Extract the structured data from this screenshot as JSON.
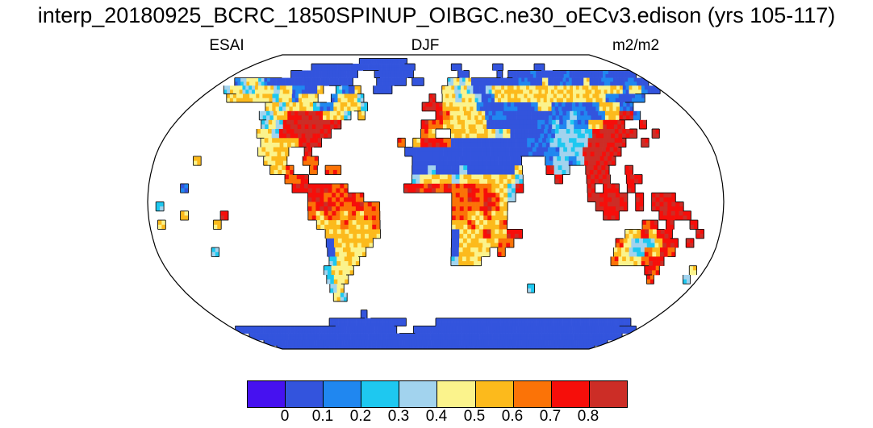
{
  "header": {
    "title": "interp_20180925_BCRC_1850SPINUP_OIBGC.ne30_oECv3.edison (yrs 105-117)"
  },
  "subtitles": {
    "left": "ESAI",
    "center": "DJF",
    "right": "m2/m2"
  },
  "colorbar": {
    "labels": [
      "0",
      "0.1",
      "0.2",
      "0.3",
      "0.4",
      "0.5",
      "0.6",
      "0.7",
      "0.8"
    ]
  },
  "chart_data": {
    "type": "heatmap",
    "title": "interp_20180925_BCRC_1850SPINUP_OIBGC.ne30_oECv3.edison (yrs 105-117)",
    "field": "ESAI",
    "season": "DJF",
    "units": "m2/m2",
    "projection": "robinson",
    "colorbar_levels": [
      0,
      0.1,
      0.2,
      0.3,
      0.4,
      0.5,
      0.6,
      0.7,
      0.8
    ],
    "palette": [
      "#4611f0",
      "#3354dd",
      "#2087f0",
      "#1ec8f0",
      "#a2d3ee",
      "#fbf38c",
      "#fcba1c",
      "#fb7307",
      "#f60e0a",
      "#cc2d26"
    ],
    "ocean_color": "#ffffff",
    "visual_summary": "Global land map: solid blue over Greenland, Sahara, Arabia, central Asia and Antarctica; orange band across mid-Siberia; dark red over eastern US, Europe-UK, east China, southeast Asia, Indonesia; orange over South America and southern Africa; pale blue/yellow over interior Australia and western North America.",
    "grid": {
      "lon_start": -180,
      "lon_step_deg": 5,
      "lat_start": 90,
      "lat_step_deg": -5,
      "cols": 72,
      "n_rows": 36,
      "encoding": "'.' = ocean (white); digit d = palette[d]",
      "rows": [
        "",
        "....................1111111111",
        "............11111111111111111111.......11......11......11",
        "..........111111111111...1111111........11.....1.11112111112111111211111",
        "..24554211111111111111....11111.11....4545111111112211511221151122112211",
        "..4554455546522116..3216..111........55454114566665566556655665566255211",
        "....55665563552655..25663..........9.5545541255665566556655665221122",
        "...........563556532256653........8986655521112211255221221266522",
        "...........4456889986553.6..........87556552221111112224221266882",
        "............45489999988...........87765656511111112242422668 88..8",
        "............5548899988............76..666565451111224443389999 9..9",
        ".............55666889............68887111111111122243434999 89..9",
        ".............5566..8.............111111111111111212244499999",
        "..............566..77............11111111111111...24424 9999",
        "...............667..7.77.........11411141111115...844..999..8",
        ".................778.............45656456565664....8...999..88",
        "..................8888877.......887878778776648........9.88.8",
        "....................8877787...........77878764.........99899.8.998",
        "....................788777877.........7777876...........9898.8.9988",
        "....................767767677.........7766766............88.....888",
        ".....................66676667.........6676667.................78.8",
        "......................6666666.........166686688.............668688",
        "......................166666..........16665677.............75443688",
        "......................15655...........16655.7..............65437687",
        "......................3565............4665.................7555788",
        ".....................3555.......................................87....5",
        ".....................355.........................................7....4",
        ".....................45",
        ".....................54",
        "",
        "........................1",
        "..................1111111111111.....111111111111111111111111111111111",
        "11111111111111111111111111111...1111111111111111111111111111111111111111",
        "111111111111111111111111111111111111111111111111111111111111111111111111",
        "111111111111111111111111111111111111111111111111111111111111111111111111",
        "111111111111111111111111111111111111111111111111111111111111111111111111"
      ]
    },
    "specks": [
      [
        11,
        31,
        7
      ],
      [
        12,
        32,
        1
      ],
      [
        13,
        5,
        6
      ],
      [
        16,
        4,
        2
      ],
      [
        18,
        1,
        3
      ],
      [
        20,
        1,
        5
      ],
      [
        19,
        4,
        6
      ],
      [
        19,
        9,
        8
      ],
      [
        20,
        8,
        6
      ],
      [
        19,
        67,
        8
      ],
      [
        20,
        68,
        8
      ],
      [
        21,
        69,
        8
      ],
      [
        22,
        68,
        8
      ],
      [
        23,
        7,
        4
      ],
      [
        27,
        49,
        3
      ]
    ]
  }
}
